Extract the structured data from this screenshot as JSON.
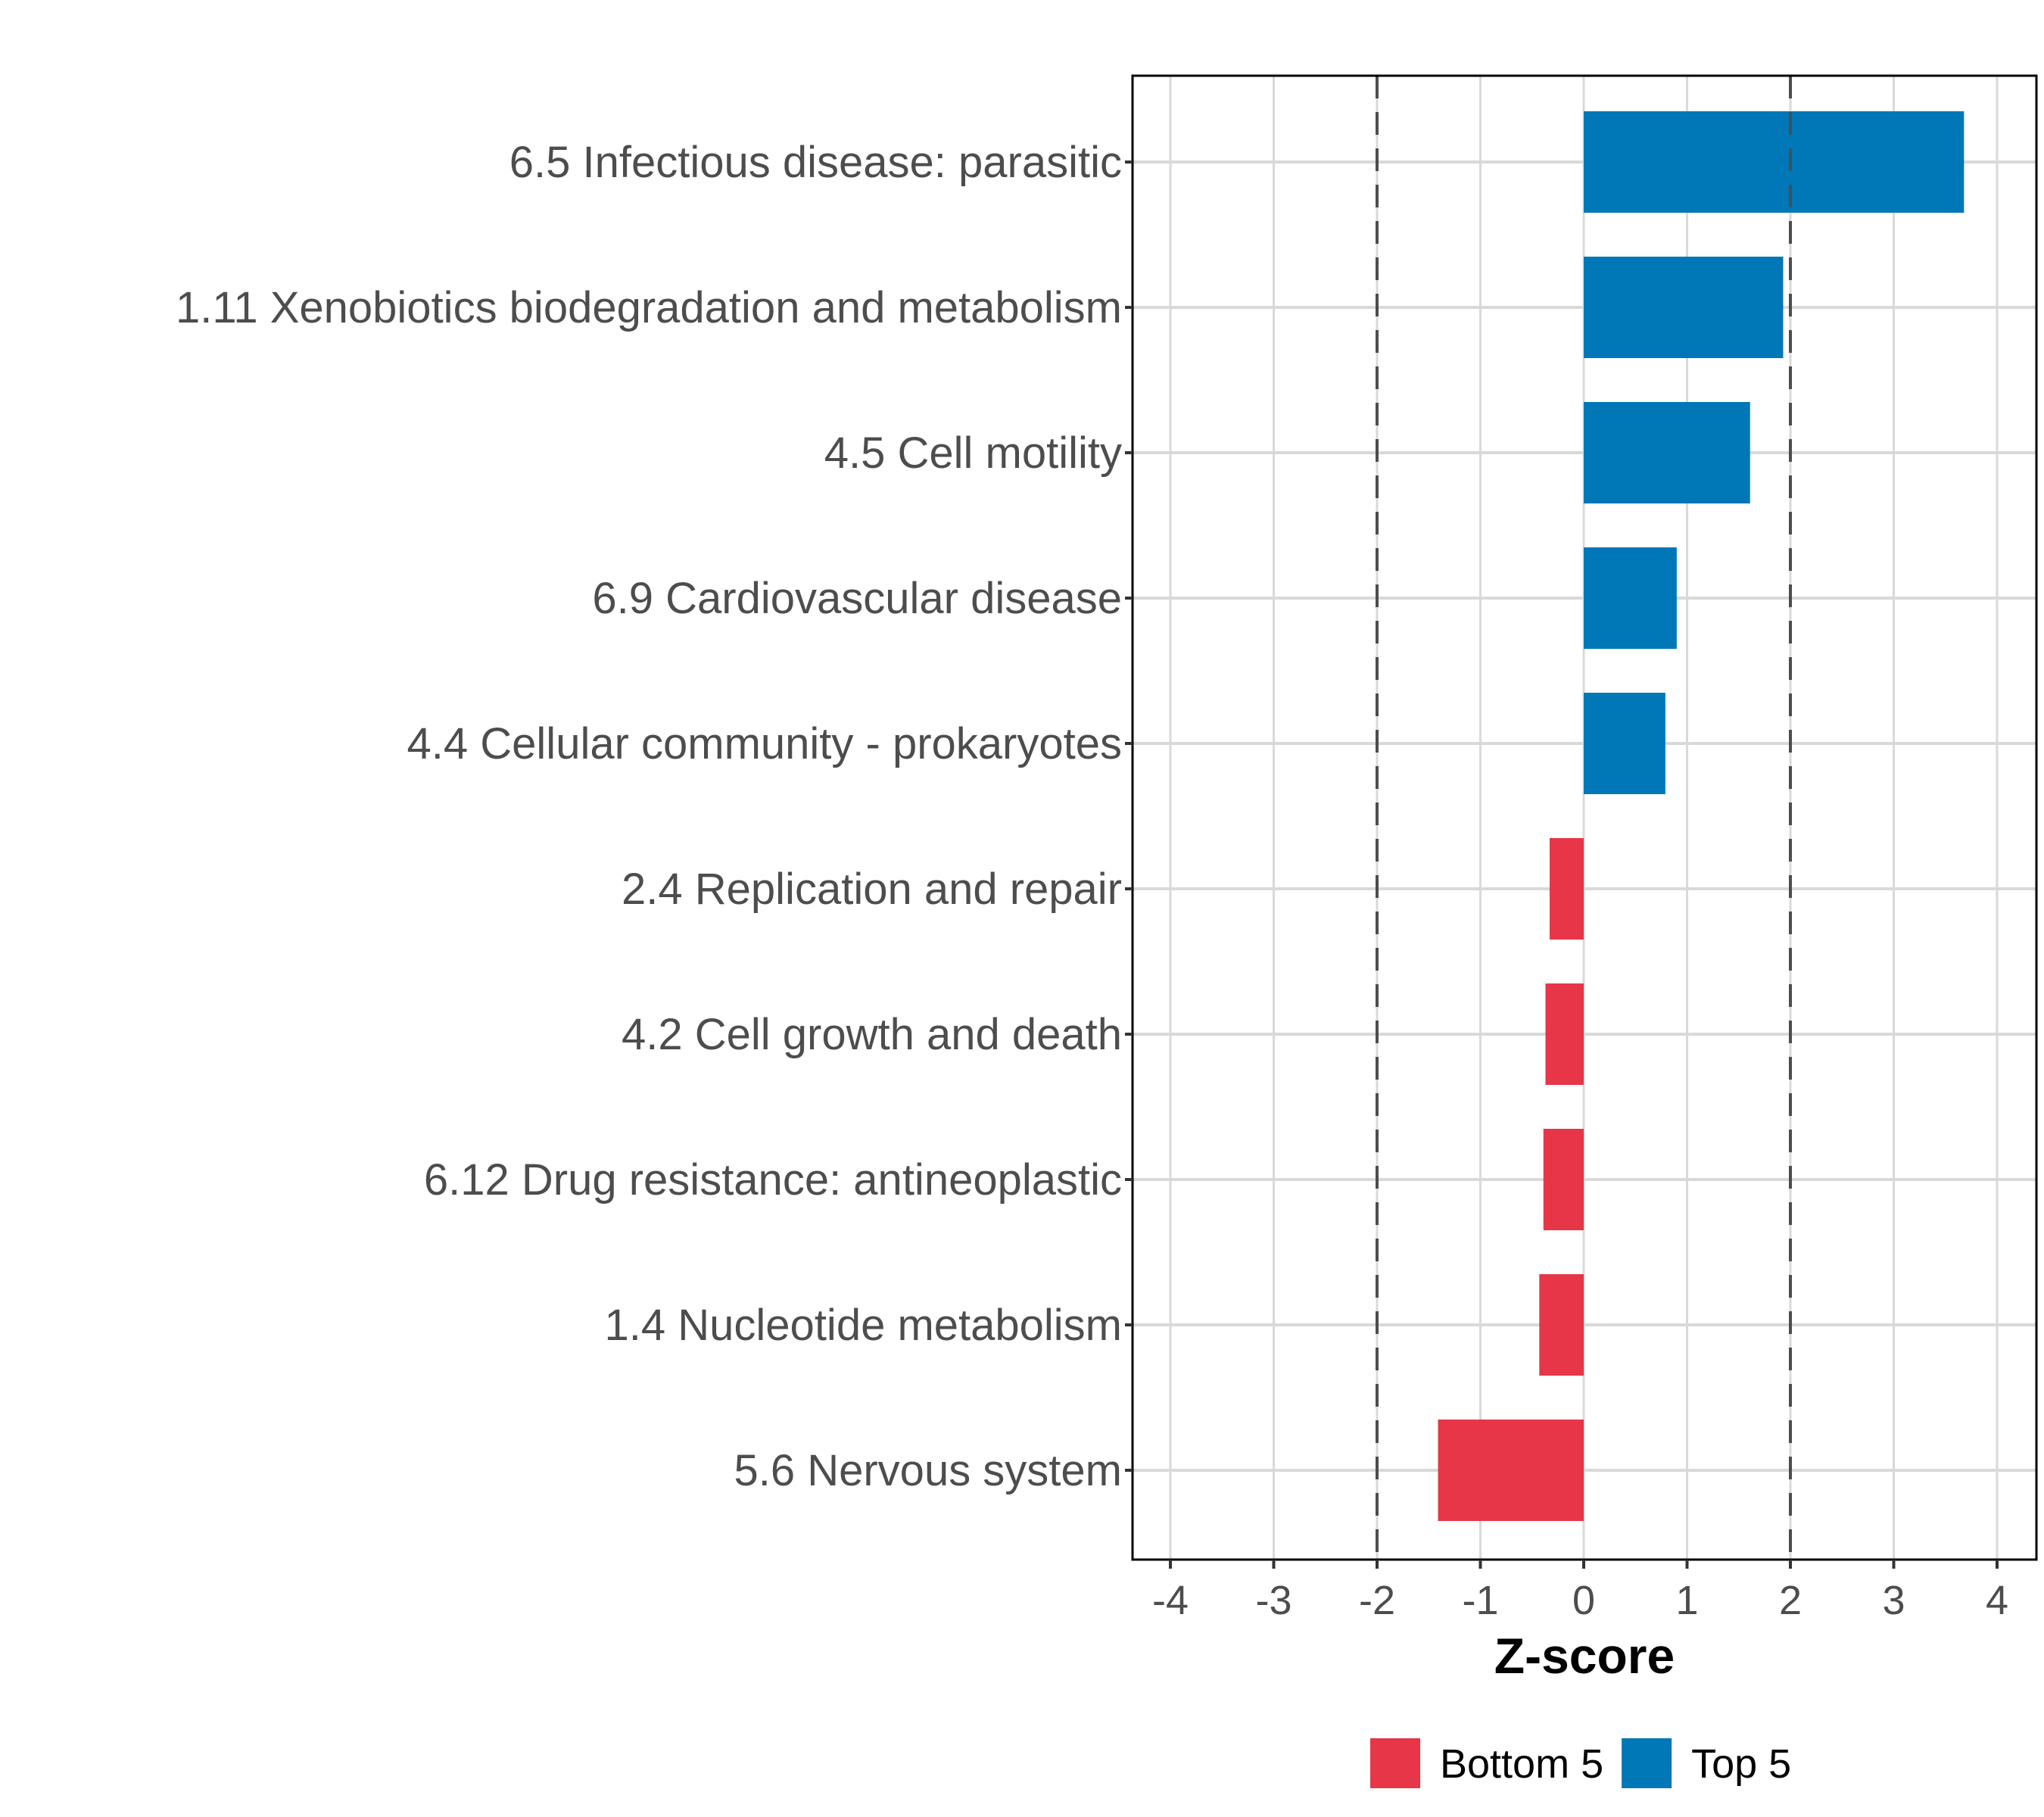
{
  "chart_data": {
    "type": "bar",
    "orientation": "horizontal",
    "title": "",
    "xlabel": "Z-score",
    "ylabel": "",
    "xlim": [
      -4.2,
      4.4
    ],
    "xticks": [
      -4,
      -3,
      -2,
      -1,
      0,
      1,
      2,
      3,
      4
    ],
    "xtick_labels": [
      "-4",
      "-3",
      "-2",
      "-1",
      "0",
      "1",
      "2",
      "3",
      "4"
    ],
    "reference_lines": [
      -2,
      2
    ],
    "grid": true,
    "legend_position": "bottom",
    "categories": [
      "6.5 Infectious disease: parasitic",
      "1.11 Xenobiotics biodegradation and metabolism",
      "4.5 Cell motility",
      "6.9 Cardiovascular disease",
      "4.4 Cellular community - prokaryotes",
      "2.4 Replication and repair",
      "4.2 Cell growth and death",
      "6.12 Drug resistance: antineoplastic",
      "1.4 Nucleotide metabolism",
      "5.6 Nervous system"
    ],
    "values": [
      3.68,
      1.93,
      1.61,
      0.9,
      0.79,
      -0.33,
      -0.37,
      -0.39,
      -0.43,
      -1.41
    ],
    "groups": [
      "Top 5",
      "Top 5",
      "Top 5",
      "Top 5",
      "Top 5",
      "Bottom 5",
      "Bottom 5",
      "Bottom 5",
      "Bottom 5",
      "Bottom 5"
    ],
    "series": [
      {
        "name": "Bottom 5",
        "color": "#E63647"
      },
      {
        "name": "Top 5",
        "color": "#0077B6"
      }
    ]
  }
}
